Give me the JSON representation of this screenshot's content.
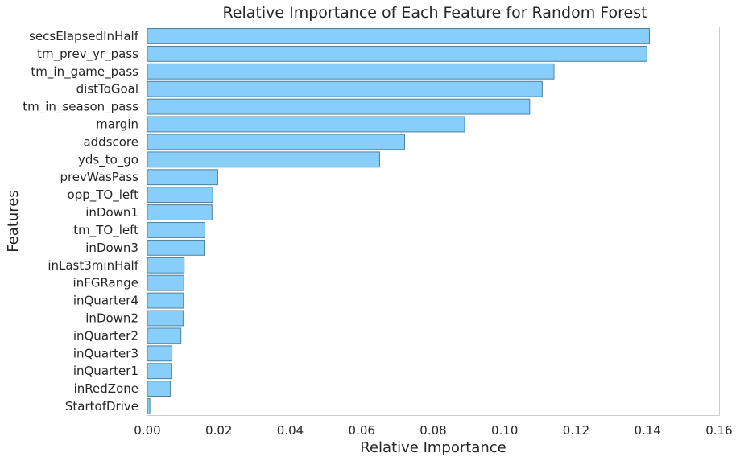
{
  "chart_data": {
    "type": "bar",
    "orientation": "horizontal",
    "title": "Relative Importance of Each Feature for Random Forest",
    "xlabel": "Relative Importance",
    "ylabel": "Features",
    "xlim": [
      0.0,
      0.16
    ],
    "xticks": [
      "0.00",
      "0.02",
      "0.04",
      "0.06",
      "0.08",
      "0.10",
      "0.12",
      "0.14",
      "0.16"
    ],
    "grid": false,
    "bar_color": "#87cefa",
    "edge_color": "#4f7f9a",
    "categories": [
      "secsElapsedInHalf",
      "tm_prev_yr_pass",
      "tm_in_game_pass",
      "distToGoal",
      "tm_in_season_pass",
      "margin",
      "addscore",
      "yds_to_go",
      "prevWasPass",
      "opp_TO_left",
      "inDown1",
      "tm_TO_left",
      "inDown3",
      "inLast3minHalf",
      "inFGRange",
      "inQuarter4",
      "inDown2",
      "inQuarter2",
      "inQuarter3",
      "inQuarter1",
      "inRedZone",
      "StartofDrive"
    ],
    "values": [
      0.1405,
      0.1398,
      0.1138,
      0.1105,
      0.107,
      0.0888,
      0.072,
      0.065,
      0.0197,
      0.0183,
      0.0181,
      0.0161,
      0.0159,
      0.0103,
      0.0102,
      0.0101,
      0.01,
      0.0094,
      0.0069,
      0.0067,
      0.0064,
      0.0007
    ]
  }
}
